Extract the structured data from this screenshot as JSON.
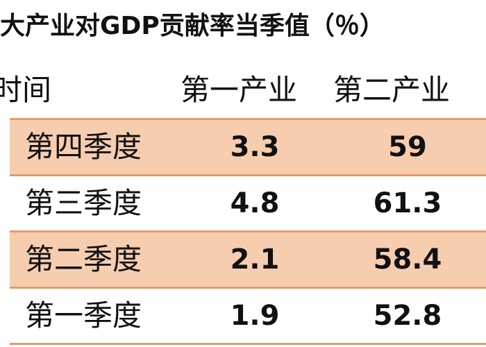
{
  "chart_data": {
    "type": "table",
    "title": "三大产业对GDP贡献率当季值（％）",
    "columns": [
      "时间",
      "第一产业",
      "第二产业"
    ],
    "rows": [
      {
        "label": "第四季度",
        "values": [
          "3.3",
          "59"
        ]
      },
      {
        "label": "第三季度",
        "values": [
          "4.8",
          "61.3"
        ]
      },
      {
        "label": "第二季度",
        "values": [
          "2.1",
          "58.4"
        ]
      },
      {
        "label": "第一季度",
        "values": [
          "1.9",
          "52.8"
        ]
      }
    ],
    "colors": {
      "row_shade": "#f7cdb0",
      "divider": "#e39a6b"
    }
  },
  "display": {
    "title_visible": "三大产业对GDP贡献率当季值（％）",
    "head_time_visible": "时间"
  }
}
